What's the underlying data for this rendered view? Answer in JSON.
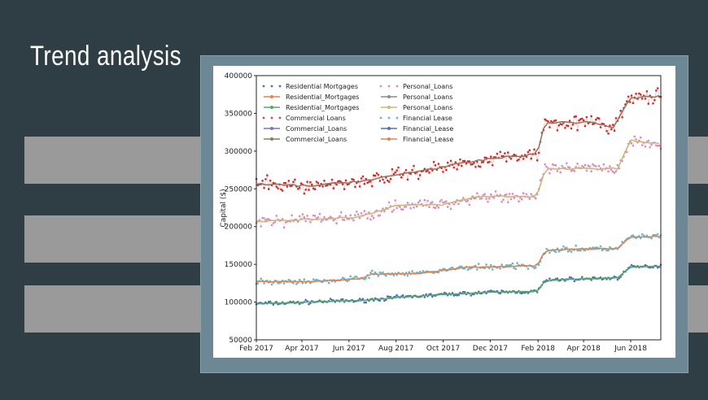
{
  "slide": {
    "title": "Trend analysis"
  },
  "chart_data": {
    "type": "line",
    "title": "",
    "xlabel": "",
    "ylabel": "Capital ($)",
    "ylim": [
      50000,
      400000
    ],
    "xlim": [
      "2017-02-01",
      "2018-07-10"
    ],
    "x_tick_labels": [
      "Feb 2017",
      "Apr 2017",
      "Jun 2017",
      "Aug 2017",
      "Oct 2017",
      "Dec 2017",
      "Feb 2018",
      "Apr 2018",
      "Jun 2018"
    ],
    "x_tick_dates": [
      "2017-02-01",
      "2017-04-01",
      "2017-06-01",
      "2017-08-01",
      "2017-10-01",
      "2017-12-01",
      "2018-02-01",
      "2018-04-01",
      "2018-06-01"
    ],
    "y_ticks": [
      50000,
      100000,
      150000,
      200000,
      250000,
      300000,
      350000,
      400000
    ],
    "y_tick_labels": [
      "50000",
      "100000",
      "150000",
      "200000",
      "250000",
      "300000",
      "350000",
      "400000"
    ],
    "legend_position": "top-left",
    "grid": false,
    "legend": [
      {
        "label": "Residential Mortgages",
        "color": "#4c72b0",
        "style": "dots"
      },
      {
        "label": "Residential_Mortgages",
        "color": "#dd8452",
        "style": "line-marker"
      },
      {
        "label": "Residential_Mortgages",
        "color": "#55a868",
        "style": "line-marker"
      },
      {
        "label": "Commercial Loans",
        "color": "#c44e52",
        "style": "dots"
      },
      {
        "label": "Commercial_Loans",
        "color": "#8172b3",
        "style": "line-marker"
      },
      {
        "label": "Commercial_Loans",
        "color": "#937860",
        "style": "line-marker"
      },
      {
        "label": "Personal_Loans",
        "color": "#da8bc3",
        "style": "dots"
      },
      {
        "label": "Personal_Loans",
        "color": "#8c8c8c",
        "style": "line-marker"
      },
      {
        "label": "Personal_Loans",
        "color": "#ccb974",
        "style": "line-marker"
      },
      {
        "label": "Financial Lease",
        "color": "#64b5cd",
        "style": "dots"
      },
      {
        "label": "Financial_Lease",
        "color": "#4c72b0",
        "style": "line-marker"
      },
      {
        "label": "Financial_Lease",
        "color": "#dd8452",
        "style": "line-marker"
      }
    ],
    "series": [
      {
        "group": "Residential Mortgages",
        "raw_color": "#4c72b0",
        "trend_color": "#55a868",
        "noise": 2500,
        "points": [
          [
            "2017-02-01",
            98000
          ],
          [
            "2017-03-15",
            99000
          ],
          [
            "2017-05-01",
            101000
          ],
          [
            "2017-06-15",
            102000
          ],
          [
            "2017-08-01",
            106000
          ],
          [
            "2017-10-01",
            110000
          ],
          [
            "2017-12-01",
            113000
          ],
          [
            "2018-01-31",
            114000
          ],
          [
            "2018-02-10",
            128000
          ],
          [
            "2018-03-01",
            130000
          ],
          [
            "2018-05-15",
            132000
          ],
          [
            "2018-05-31",
            146000
          ],
          [
            "2018-07-10",
            148000
          ]
        ]
      },
      {
        "group": "Financial Lease",
        "raw_color": "#64b5cd",
        "trend_color": "#dd8452",
        "noise": 3500,
        "points": [
          [
            "2017-02-01",
            127000
          ],
          [
            "2017-04-15",
            127000
          ],
          [
            "2017-06-15",
            131000
          ],
          [
            "2017-07-01",
            137000
          ],
          [
            "2017-09-01",
            138000
          ],
          [
            "2017-11-01",
            146000
          ],
          [
            "2018-01-31",
            148000
          ],
          [
            "2018-02-10",
            168000
          ],
          [
            "2018-03-15",
            170000
          ],
          [
            "2018-05-15",
            171000
          ],
          [
            "2018-05-31",
            186000
          ],
          [
            "2018-07-10",
            187000
          ]
        ]
      },
      {
        "group": "Personal Loans",
        "raw_color": "#da8bc3",
        "trend_color": "#ccb974",
        "noise": 7500,
        "points": [
          [
            "2017-02-01",
            207000
          ],
          [
            "2017-04-01",
            209000
          ],
          [
            "2017-06-15",
            213000
          ],
          [
            "2017-08-01",
            228000
          ],
          [
            "2017-10-01",
            229000
          ],
          [
            "2017-11-15",
            240000
          ],
          [
            "2018-01-31",
            240000
          ],
          [
            "2018-02-10",
            276000
          ],
          [
            "2018-05-15",
            277000
          ],
          [
            "2018-06-01",
            314000
          ],
          [
            "2018-07-10",
            310000
          ]
        ]
      },
      {
        "group": "Commercial Loans",
        "raw_color": "#d62728",
        "trend_color": "#937860",
        "noise": 9000,
        "points": [
          [
            "2017-02-01",
            256000
          ],
          [
            "2017-04-15",
            254000
          ],
          [
            "2017-07-01",
            262000
          ],
          [
            "2017-08-15",
            271000
          ],
          [
            "2017-10-01",
            279000
          ],
          [
            "2017-12-01",
            290000
          ],
          [
            "2018-01-31",
            296000
          ],
          [
            "2018-02-10",
            338000
          ],
          [
            "2018-04-15",
            338000
          ],
          [
            "2018-05-10",
            331000
          ],
          [
            "2018-05-31",
            370000
          ],
          [
            "2018-07-10",
            373000
          ]
        ]
      }
    ]
  }
}
